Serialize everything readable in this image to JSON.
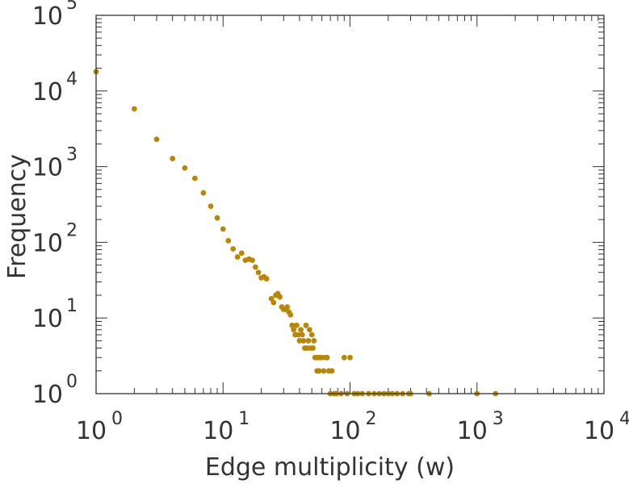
{
  "chart_data": {
    "type": "scatter",
    "title": "",
    "xlabel": "Edge multiplicity (w)",
    "ylabel": "Frequency",
    "x_scale": "log",
    "y_scale": "log",
    "xlim": [
      1,
      10000
    ],
    "ylim": [
      1,
      100000
    ],
    "grid": false,
    "legend": "none",
    "x_tick_labels": [
      {
        "base": "10",
        "exp": "0",
        "value": 1
      },
      {
        "base": "10",
        "exp": "1",
        "value": 10
      },
      {
        "base": "10",
        "exp": "2",
        "value": 100
      },
      {
        "base": "10",
        "exp": "3",
        "value": 1000
      },
      {
        "base": "10",
        "exp": "4",
        "value": 10000
      }
    ],
    "y_tick_labels": [
      {
        "base": "10",
        "exp": "0",
        "value": 1
      },
      {
        "base": "10",
        "exp": "1",
        "value": 10
      },
      {
        "base": "10",
        "exp": "2",
        "value": 100
      },
      {
        "base": "10",
        "exp": "3",
        "value": 1000
      },
      {
        "base": "10",
        "exp": "4",
        "value": 10000
      },
      {
        "base": "10",
        "exp": "5",
        "value": 100000
      }
    ],
    "marker_color": "#b8860b",
    "axis_color": "#333333",
    "points": [
      [
        1,
        18000
      ],
      [
        2,
        5800
      ],
      [
        3,
        2300
      ],
      [
        4,
        1280
      ],
      [
        5,
        960
      ],
      [
        6,
        700
      ],
      [
        7,
        450
      ],
      [
        8,
        300
      ],
      [
        9,
        210
      ],
      [
        10,
        150
      ],
      [
        11,
        105
      ],
      [
        12,
        82
      ],
      [
        13,
        64
      ],
      [
        14,
        72
      ],
      [
        15,
        58
      ],
      [
        16,
        60
      ],
      [
        17,
        58
      ],
      [
        18,
        47
      ],
      [
        19,
        40
      ],
      [
        20,
        34
      ],
      [
        21,
        35
      ],
      [
        22,
        33
      ],
      [
        24,
        18
      ],
      [
        25,
        16
      ],
      [
        26,
        20
      ],
      [
        27,
        21
      ],
      [
        28,
        19
      ],
      [
        29,
        14
      ],
      [
        30,
        13
      ],
      [
        31,
        13
      ],
      [
        32,
        14
      ],
      [
        33,
        12
      ],
      [
        34,
        11
      ],
      [
        35,
        8
      ],
      [
        36,
        7
      ],
      [
        37,
        6
      ],
      [
        38,
        8
      ],
      [
        39,
        6
      ],
      [
        40,
        5
      ],
      [
        41,
        7
      ],
      [
        42,
        6
      ],
      [
        43,
        5
      ],
      [
        44,
        4
      ],
      [
        45,
        8
      ],
      [
        46,
        4
      ],
      [
        47,
        5
      ],
      [
        48,
        7
      ],
      [
        49,
        4
      ],
      [
        50,
        6
      ],
      [
        51,
        4
      ],
      [
        52,
        5
      ],
      [
        53,
        3
      ],
      [
        54,
        3
      ],
      [
        55,
        2
      ],
      [
        56,
        3
      ],
      [
        57,
        2
      ],
      [
        58,
        3
      ],
      [
        60,
        3
      ],
      [
        62,
        2
      ],
      [
        64,
        3
      ],
      [
        66,
        3
      ],
      [
        68,
        2
      ],
      [
        70,
        1
      ],
      [
        72,
        2
      ],
      [
        75,
        1
      ],
      [
        78,
        1
      ],
      [
        85,
        1
      ],
      [
        90,
        3
      ],
      [
        95,
        1
      ],
      [
        100,
        3
      ],
      [
        108,
        1
      ],
      [
        115,
        1
      ],
      [
        125,
        1
      ],
      [
        140,
        1
      ],
      [
        155,
        1
      ],
      [
        170,
        1
      ],
      [
        185,
        1
      ],
      [
        200,
        1
      ],
      [
        215,
        1
      ],
      [
        235,
        1
      ],
      [
        260,
        1
      ],
      [
        290,
        1
      ],
      [
        300,
        1
      ],
      [
        420,
        1
      ],
      [
        1000,
        1
      ],
      [
        1400,
        1
      ]
    ]
  }
}
